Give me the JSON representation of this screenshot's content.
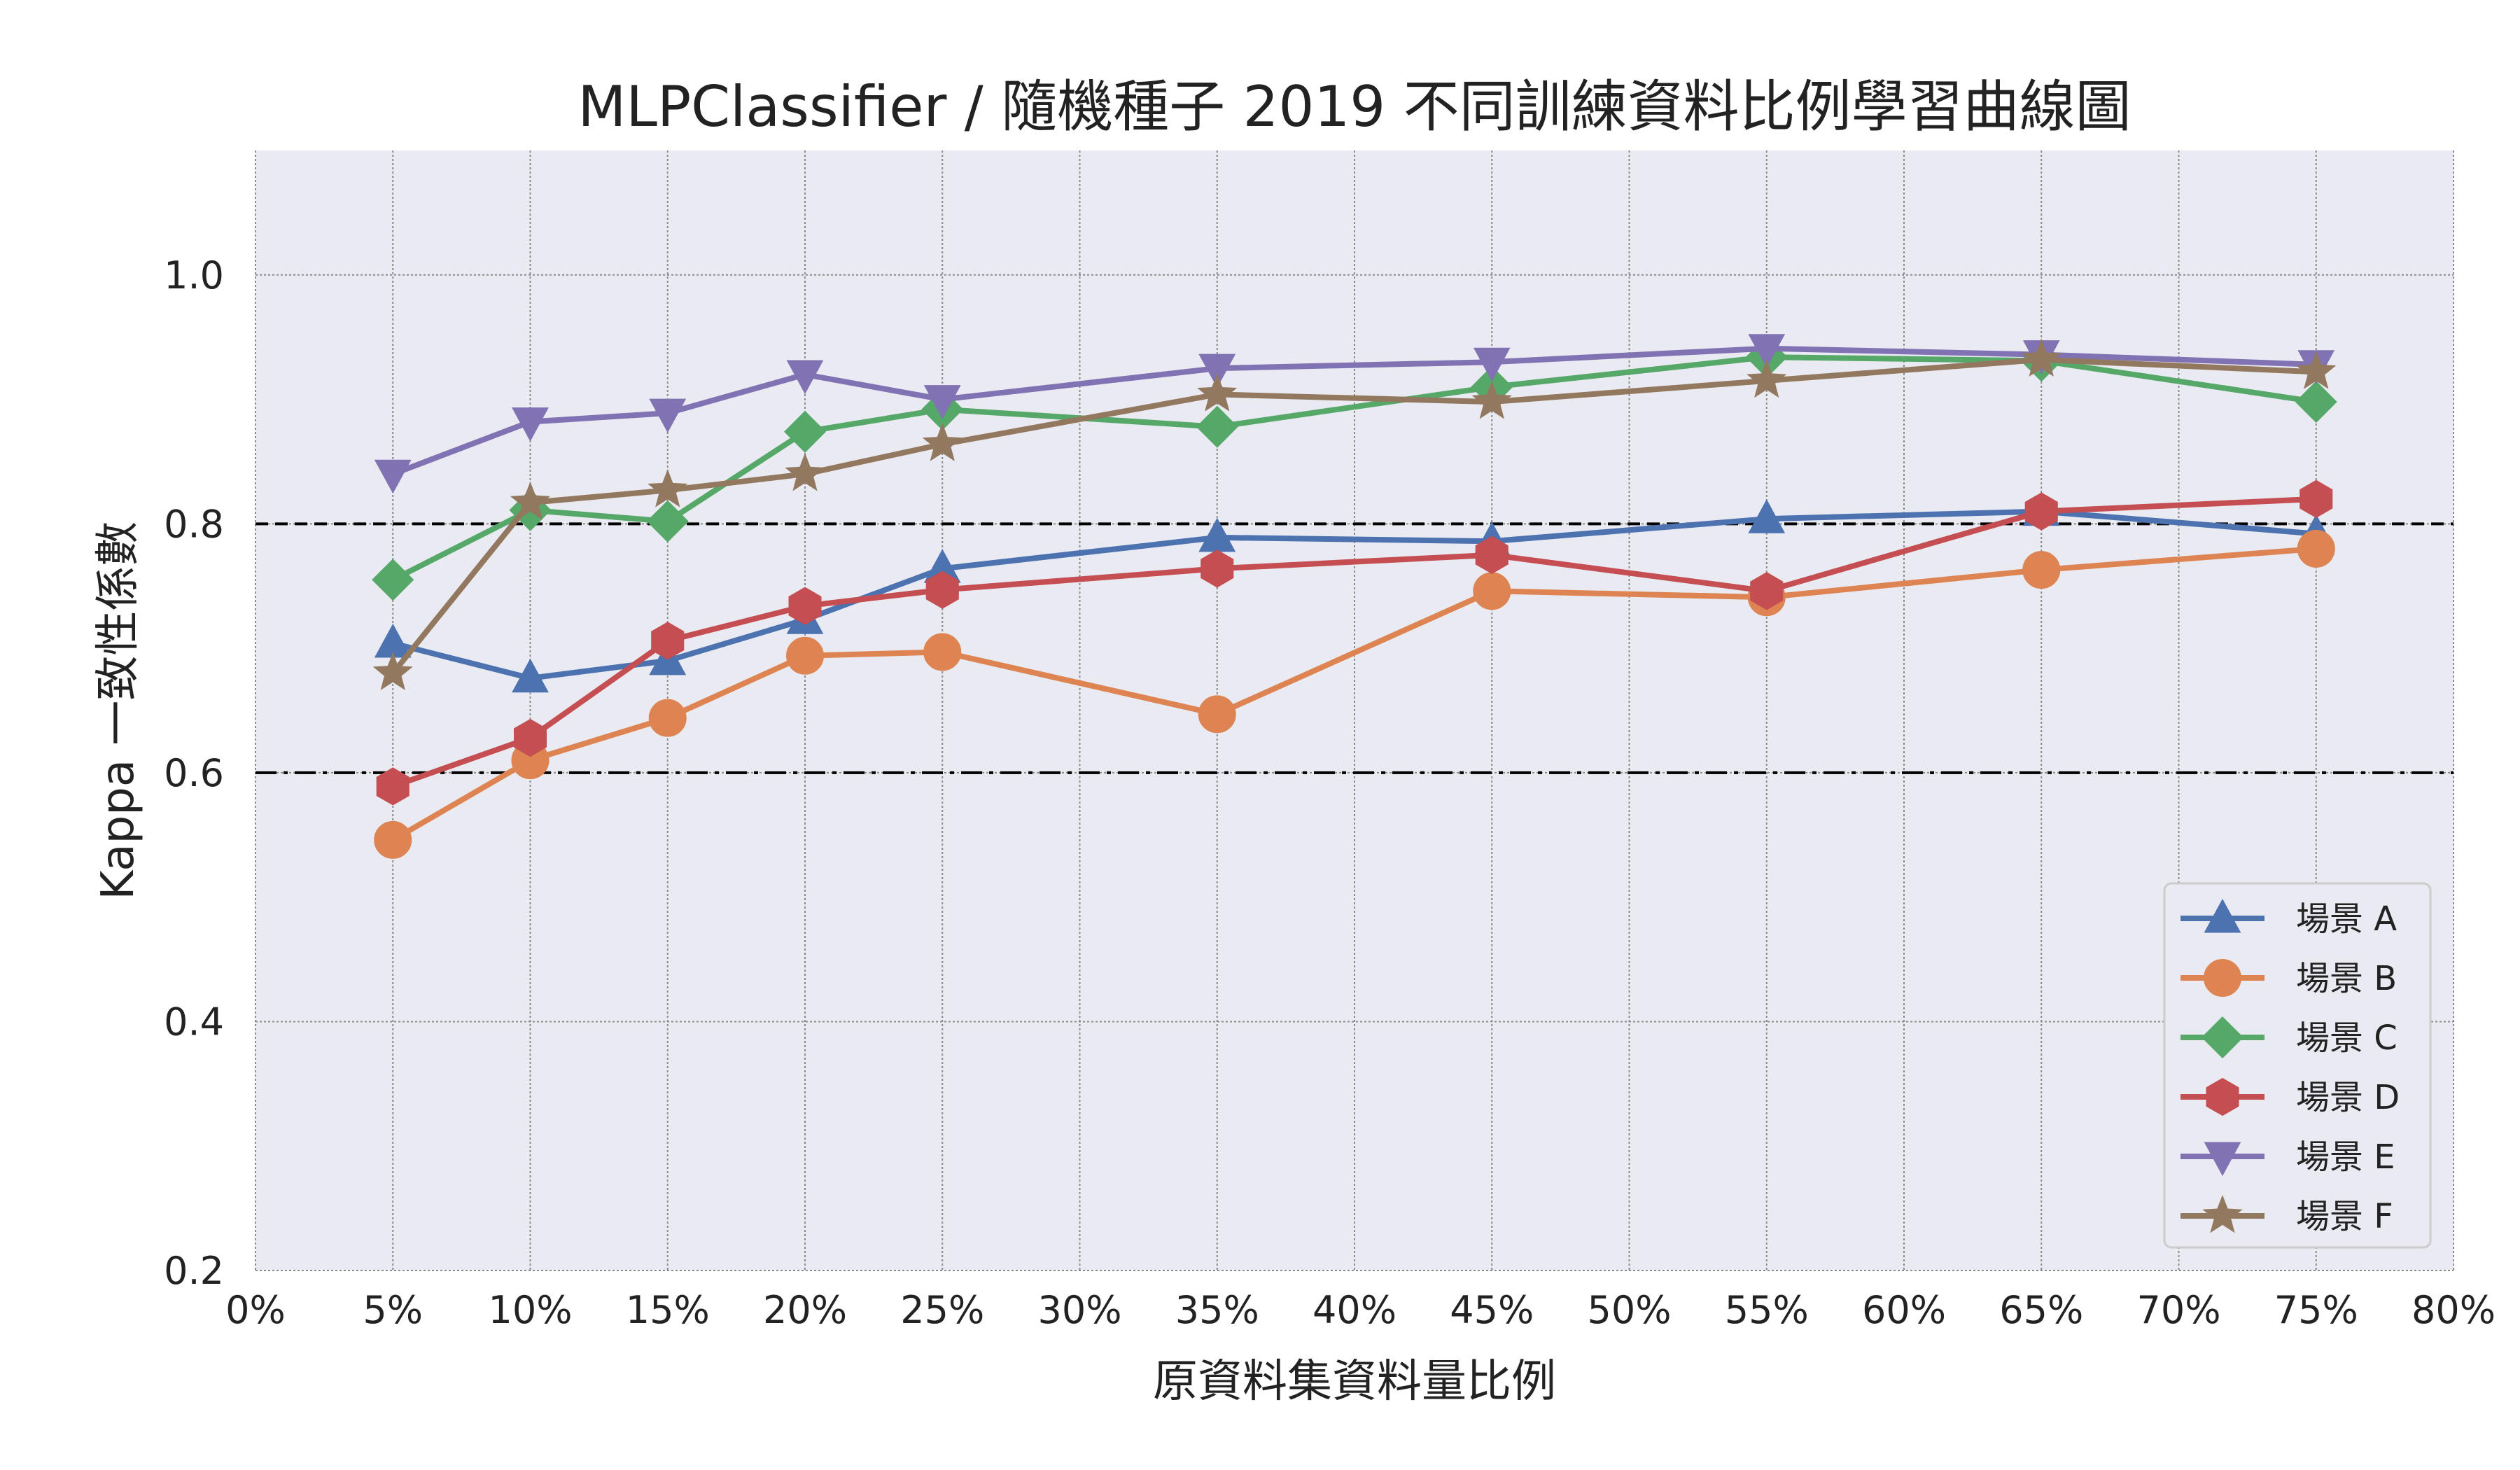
{
  "chart_data": {
    "type": "line",
    "title": "MLPClassifier / 隨機種子 2019 不同訓練資料比例學習曲線圖",
    "xlabel": "原資料集資料量比例",
    "ylabel": "Kappa 一致性係數",
    "xlim": [
      0,
      80
    ],
    "ylim": [
      0.2,
      1.1
    ],
    "x_ticks": [
      0,
      5,
      10,
      15,
      20,
      25,
      30,
      35,
      40,
      45,
      50,
      55,
      60,
      65,
      70,
      75,
      80
    ],
    "x_tick_labels": [
      "0%",
      "5%",
      "10%",
      "15%",
      "20%",
      "25%",
      "30%",
      "35%",
      "40%",
      "45%",
      "50%",
      "55%",
      "60%",
      "65%",
      "70%",
      "75%",
      "80%"
    ],
    "y_ticks": [
      0.2,
      0.4,
      0.6,
      0.8,
      1.0
    ],
    "y_tick_labels": [
      "0.2",
      "0.4",
      "0.6",
      "0.8",
      "1.0"
    ],
    "x": [
      5,
      10,
      15,
      20,
      25,
      35,
      45,
      55,
      65,
      75
    ],
    "reference_lines": [
      {
        "y": 0.8,
        "style": "dashed",
        "color": "#000000"
      },
      {
        "y": 0.6,
        "style": "dashdot",
        "color": "#000000"
      }
    ],
    "grid": true,
    "legend_position": "bottom-right",
    "series": [
      {
        "name": "場景 A",
        "color": "#4C72B0",
        "marker": "triangle-up",
        "values": [
          0.704,
          0.676,
          0.69,
          0.723,
          0.764,
          0.789,
          0.786,
          0.804,
          0.81,
          0.792
        ]
      },
      {
        "name": "場景 B",
        "color": "#DD8452",
        "marker": "circle",
        "values": [
          0.546,
          0.61,
          0.644,
          0.694,
          0.697,
          0.647,
          0.746,
          0.741,
          0.763,
          0.78
        ]
      },
      {
        "name": "場景 C",
        "color": "#55A868",
        "marker": "diamond",
        "values": [
          0.755,
          0.811,
          0.802,
          0.874,
          0.892,
          0.878,
          0.91,
          0.934,
          0.931,
          0.898
        ]
      },
      {
        "name": "場景 D",
        "color": "#C44E52",
        "marker": "hexagon",
        "values": [
          0.589,
          0.628,
          0.706,
          0.734,
          0.747,
          0.764,
          0.775,
          0.746,
          0.81,
          0.82
        ]
      },
      {
        "name": "場景 E",
        "color": "#8172B3",
        "marker": "triangle-down",
        "values": [
          0.84,
          0.882,
          0.889,
          0.92,
          0.9,
          0.925,
          0.93,
          0.941,
          0.936,
          0.928
        ]
      },
      {
        "name": "場景 F",
        "color": "#937860",
        "marker": "star",
        "values": [
          0.68,
          0.817,
          0.827,
          0.84,
          0.864,
          0.904,
          0.898,
          0.915,
          0.932,
          0.922
        ]
      }
    ]
  }
}
